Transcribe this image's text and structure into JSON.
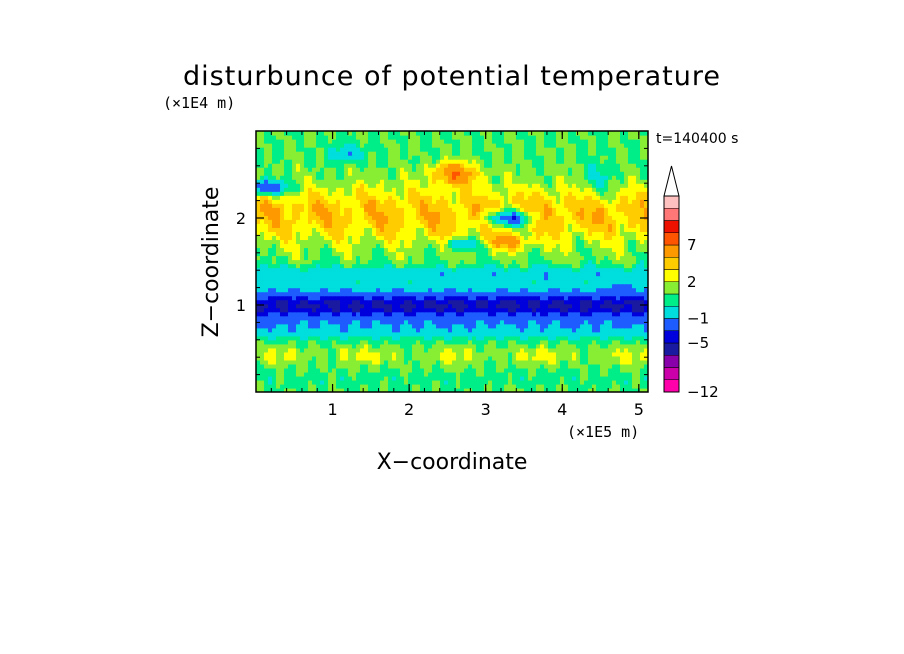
{
  "chart_data": {
    "type": "heatmap",
    "title": "disturbunce of potential temperature",
    "time_label": "t=140400 s",
    "xlabel": "X−coordinate",
    "ylabel": "Z−coordinate",
    "x_unit": "(×1E5 m)",
    "y_unit": "(×1E4 m)",
    "xlim": [
      0,
      5.12
    ],
    "ylim": [
      0,
      3.0
    ],
    "x_ticks": [
      1,
      2,
      3,
      4,
      5
    ],
    "x_tick_labels": [
      "1",
      "2",
      "3",
      "4",
      "5"
    ],
    "y_ticks": [
      1,
      2
    ],
    "y_tick_labels": [
      "1",
      "2"
    ],
    "colorbar": {
      "levels": [
        -12,
        -10,
        -8,
        -6,
        -5,
        -3,
        -1,
        0,
        1,
        2,
        3,
        5,
        7,
        8,
        10
      ],
      "tick_labels": [
        {
          "level": 7,
          "label": "7"
        },
        {
          "level": 2,
          "label": "2"
        },
        {
          "level": -1,
          "label": "−1"
        },
        {
          "level": -5,
          "label": "−5"
        },
        {
          "level": -12,
          "label": "−12"
        }
      ],
      "colors": [
        "#ff00aa",
        "#cc00aa",
        "#8800aa",
        "#1a1aa0",
        "#0000dd",
        "#1e5cff",
        "#00dddd",
        "#00ee88",
        "#88ee33",
        "#ffff00",
        "#ffcc00",
        "#ff9900",
        "#ff5500",
        "#ee1100",
        "#ff7777",
        "#ffc0c0"
      ],
      "extend_top": true
    },
    "dominant_features": [
      {
        "z_range": [
          0.75,
          1.3
        ],
        "description_value": -5
      },
      {
        "z_range": [
          1.8,
          2.4
        ],
        "description_value": 2
      }
    ]
  }
}
